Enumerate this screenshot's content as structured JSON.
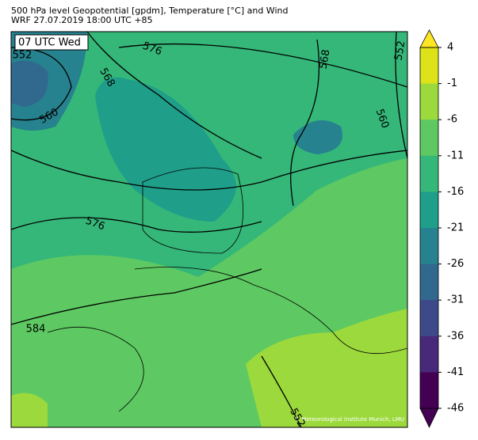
{
  "header": {
    "title": "500 hPa level Geopotential [gpdm], Temperature [°C] and Wind",
    "subtitle": "WRF 27.07.2019 18:00 UTC +85"
  },
  "map": {
    "time_label": "07 UTC Wed",
    "contour_labels": [
      "552",
      "576",
      "568",
      "560",
      "576",
      "584",
      "568",
      "552",
      "560",
      "552"
    ],
    "copyright": "© Meteorological Institute Munich, LMU"
  },
  "colorbar": {
    "ticks": [
      4,
      -1,
      -6,
      -11,
      -16,
      -21,
      -26,
      -31,
      -36,
      -41,
      -46
    ],
    "colors": [
      "#dde318",
      "#9bd93c",
      "#5ec962",
      "#35b779",
      "#1f9e89",
      "#26828e",
      "#31688e",
      "#3e4989",
      "#482878",
      "#440154"
    ],
    "extend_colors": [
      "#fde725",
      "#440154"
    ]
  }
}
